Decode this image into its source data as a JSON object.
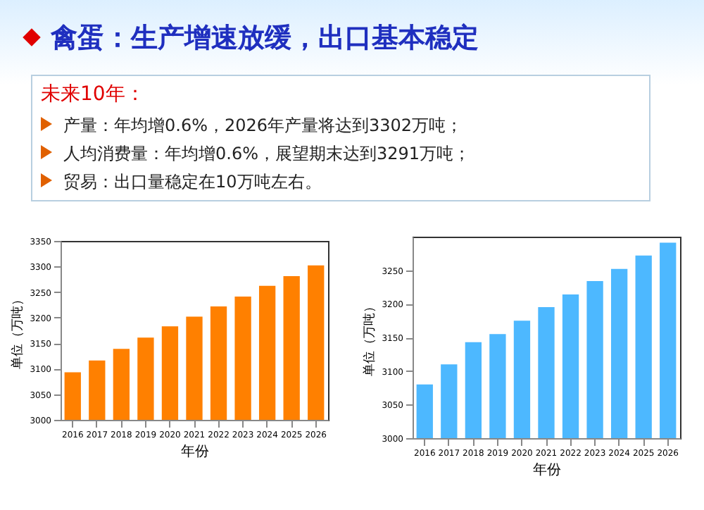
{
  "chart_data": [
    {
      "type": "other",
      "title": "禽蛋：生产增速放缓，出口基本稳定",
      "subtitle": "未来10年：",
      "annotations": [
        "产量：年均增0.6%，2026年产量将达到3302万吨；",
        "人均消费量：年均增0.6%，展望期末达到3291万吨；",
        "贸易：出口量稳定在10万吨左右。"
      ]
    },
    {
      "type": "bar",
      "xlabel": "年份",
      "ylabel": "单位（万吨）",
      "categories": [
        "2016",
        "2017",
        "2018",
        "2019",
        "2020",
        "2021",
        "2022",
        "2023",
        "2024",
        "2025",
        "2026"
      ],
      "series": [
        {
          "color": "#ff8000",
          "values": [
            3093,
            3116,
            3139,
            3161,
            3183,
            3202,
            3222,
            3241,
            3262,
            3281,
            3302
          ]
        }
      ],
      "ylim": [
        3000,
        3350
      ],
      "yticks": [
        3000,
        3050,
        3100,
        3150,
        3200,
        3250,
        3300,
        3350
      ],
      "grid": false
    },
    {
      "type": "bar",
      "xlabel": "年份",
      "ylabel": "单位（万吨）",
      "categories": [
        "2016",
        "2017",
        "2018",
        "2019",
        "2020",
        "2021",
        "2022",
        "2023",
        "2024",
        "2025",
        "2026"
      ],
      "series": [
        {
          "color": "#4db8ff",
          "values": [
            3080,
            3110,
            3143,
            3155,
            3175,
            3195,
            3214,
            3234,
            3252,
            3272,
            3291
          ]
        }
      ],
      "ylim": [
        3000,
        3300
      ],
      "yticks": [
        3000,
        3050,
        3100,
        3150,
        3200,
        3250
      ],
      "grid": false
    }
  ]
}
